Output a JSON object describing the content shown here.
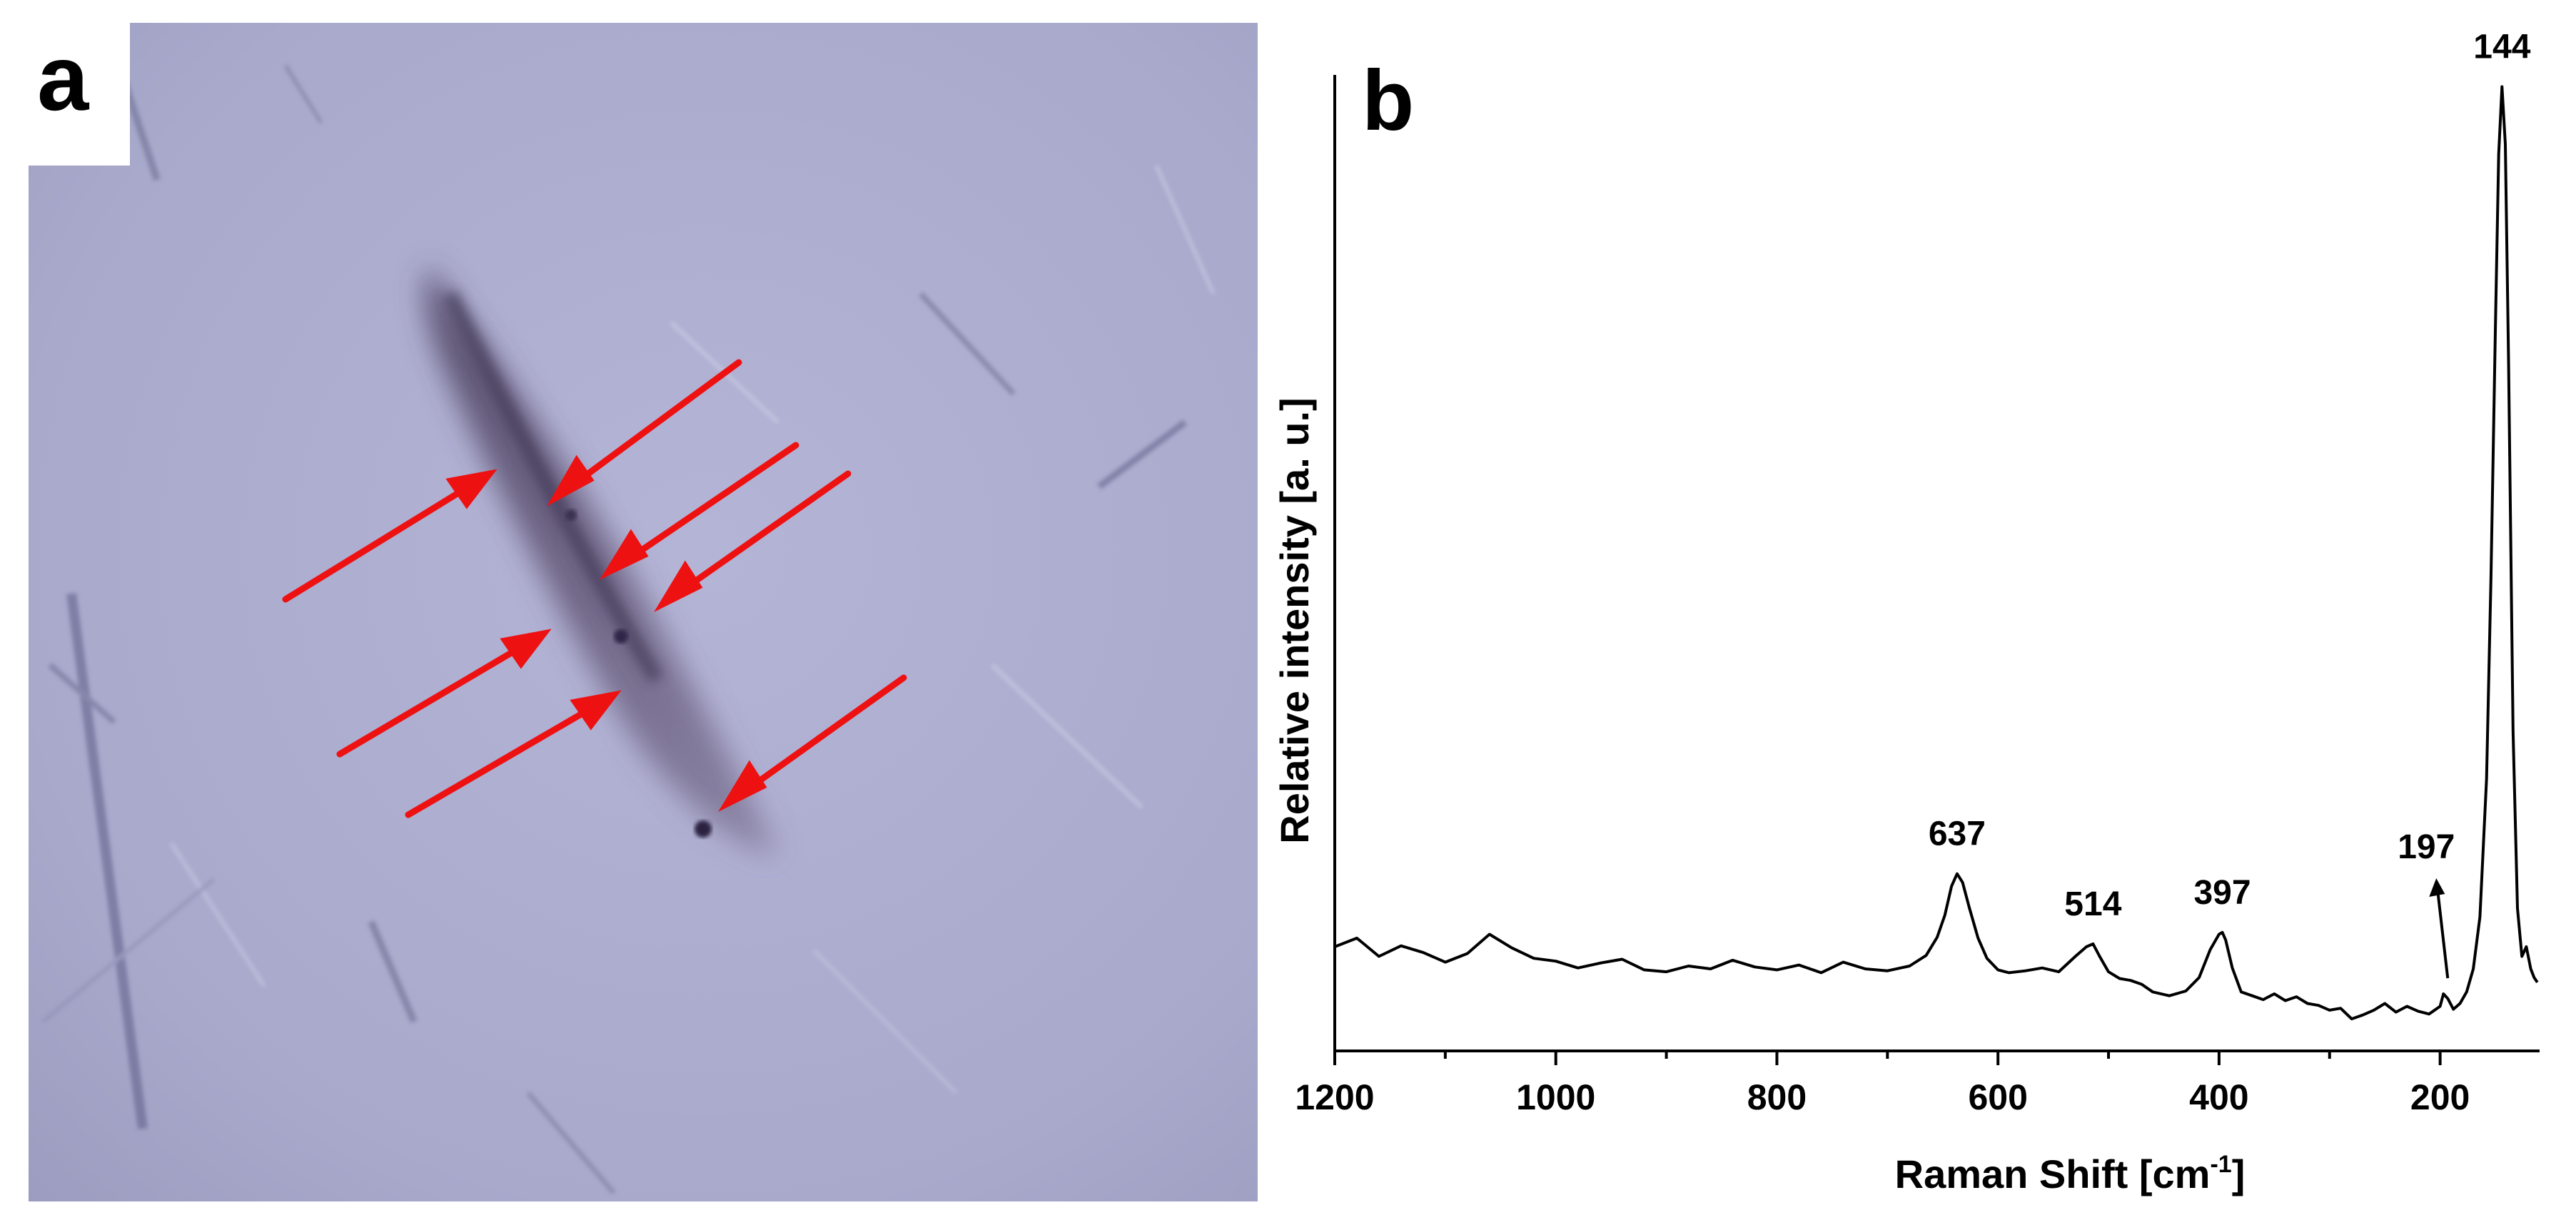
{
  "panels": {
    "a": {
      "label": "a"
    },
    "b": {
      "label": "b"
    }
  },
  "micrograph": {
    "description_colors": {
      "background": "#a9a9cc",
      "streak": "#4a3f5e",
      "arrows": "#ee1111"
    },
    "arrow_count": 7
  },
  "chart_data": {
    "type": "line",
    "title": "",
    "xlabel": "Raman Shift [cm⁻¹]",
    "xlabel_main": "Raman Shift [cm",
    "xlabel_sup": "-1",
    "xlabel_end": "]",
    "ylabel": "Relative intensity [a. u.]",
    "x_reversed": true,
    "xlim": [
      1200,
      110
    ],
    "ylim": [
      0,
      100
    ],
    "x_ticks": [
      1200,
      1000,
      800,
      600,
      400,
      200
    ],
    "x_tick_labels": [
      "1200",
      "1000",
      "800",
      "600",
      "400",
      "200"
    ],
    "y_ticks_shown": false,
    "grid": false,
    "legend": "none",
    "line_color": "#000000",
    "series": [
      {
        "x": [
          1200,
          1180,
          1160,
          1140,
          1120,
          1100,
          1080,
          1060,
          1040,
          1020,
          1000,
          980,
          960,
          940,
          920,
          900,
          880,
          860,
          840,
          820,
          800,
          780,
          760,
          740,
          720,
          700,
          680,
          665,
          655,
          648,
          642,
          637,
          632,
          626,
          618,
          610,
          600,
          590,
          575,
          560,
          545,
          530,
          520,
          514,
          508,
          500,
          490,
          480,
          470,
          460,
          445,
          430,
          418,
          408,
          400,
          397,
          394,
          388,
          380,
          370,
          360,
          350,
          340,
          330,
          320,
          310,
          300,
          290,
          280,
          270,
          260,
          250,
          240,
          230,
          220,
          210,
          200,
          197,
          193,
          188,
          182,
          176,
          170,
          164,
          158,
          154,
          150,
          147,
          144,
          141,
          138,
          134,
          130,
          126,
          122,
          118,
          115,
          112
        ],
        "y": [
          9.5,
          10.4,
          8.5,
          9.6,
          8.9,
          7.9,
          8.8,
          10.8,
          9.4,
          8.3,
          8.0,
          7.3,
          7.8,
          8.2,
          7.1,
          6.9,
          7.5,
          7.2,
          8.1,
          7.4,
          7.1,
          7.6,
          6.8,
          7.9,
          7.2,
          7.0,
          7.5,
          8.6,
          10.5,
          12.8,
          15.8,
          17.1,
          16.2,
          13.6,
          10.4,
          8.3,
          7.1,
          6.8,
          7.0,
          7.3,
          6.9,
          8.5,
          9.5,
          9.8,
          8.5,
          6.9,
          6.2,
          6.0,
          5.6,
          4.8,
          4.4,
          4.9,
          6.3,
          9.2,
          10.8,
          11.0,
          10.2,
          7.3,
          4.8,
          4.4,
          4.0,
          4.6,
          3.9,
          4.3,
          3.6,
          3.4,
          2.9,
          3.1,
          2.0,
          2.4,
          2.9,
          3.6,
          2.7,
          3.3,
          2.8,
          2.5,
          3.3,
          4.6,
          4.1,
          3.0,
          3.6,
          4.8,
          7.2,
          12.6,
          27.0,
          48.0,
          74.0,
          92.0,
          99.0,
          93.0,
          70.0,
          32.0,
          13.5,
          8.5,
          9.5,
          7.2,
          6.3,
          5.8
        ]
      }
    ],
    "annotations": [
      {
        "text": "144",
        "x": 144
      },
      {
        "text": "637",
        "x": 637
      },
      {
        "text": "514",
        "x": 514
      },
      {
        "text": "397",
        "x": 397
      },
      {
        "text": "197",
        "x": 197,
        "arrow": true
      }
    ]
  }
}
